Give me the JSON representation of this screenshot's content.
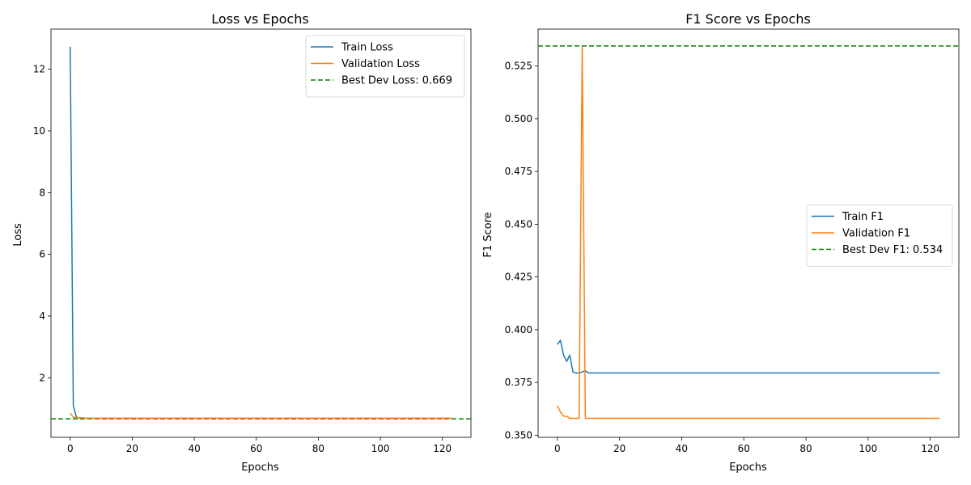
{
  "chart_data": [
    {
      "type": "line",
      "title": "Loss vs Epochs",
      "xlabel": "Epochs",
      "ylabel": "Loss",
      "xlim": [
        -6.2,
        129.2
      ],
      "ylim": [
        0.07,
        13.3
      ],
      "xticks": [
        0,
        20,
        40,
        60,
        80,
        100,
        120
      ],
      "yticks": [
        2,
        4,
        6,
        8,
        10,
        12
      ],
      "grid": false,
      "legend_position": "top-right",
      "series": [
        {
          "name": "Train Loss",
          "color": "#1f77b4",
          "style": "solid",
          "x": [
            0,
            1,
            2,
            3,
            4,
            5,
            6,
            8,
            10,
            20,
            40,
            60,
            80,
            100,
            123
          ],
          "y": [
            12.73,
            1.1,
            0.72,
            0.7,
            0.7,
            0.69,
            0.69,
            0.69,
            0.69,
            0.69,
            0.69,
            0.69,
            0.69,
            0.69,
            0.69
          ]
        },
        {
          "name": "Validation Loss",
          "color": "#ff7f0e",
          "style": "solid",
          "x": [
            0,
            1,
            2,
            3,
            4,
            5,
            6,
            8,
            10,
            20,
            40,
            60,
            80,
            100,
            123
          ],
          "y": [
            0.85,
            0.72,
            0.71,
            0.7,
            0.7,
            0.69,
            0.69,
            0.69,
            0.69,
            0.69,
            0.69,
            0.69,
            0.69,
            0.69,
            0.69
          ]
        }
      ],
      "reference_lines": [
        {
          "name": "Best Dev Loss: 0.669",
          "y": 0.669,
          "color": "#008000",
          "style": "dashed"
        }
      ]
    },
    {
      "type": "line",
      "title": "F1 Score vs Epochs",
      "xlabel": "Epochs",
      "ylabel": "F1 Score",
      "xlim": [
        -6.2,
        129.2
      ],
      "ylim": [
        0.349,
        0.5425
      ],
      "xticks": [
        0,
        20,
        40,
        60,
        80,
        100,
        120
      ],
      "yticks": [
        0.35,
        0.375,
        0.4,
        0.425,
        0.45,
        0.475,
        0.5,
        0.525
      ],
      "ytick_labels": [
        "0.350",
        "0.375",
        "0.400",
        "0.425",
        "0.450",
        "0.475",
        "0.500",
        "0.525"
      ],
      "grid": false,
      "legend_position": "center-right",
      "series": [
        {
          "name": "Train F1",
          "color": "#1f77b4",
          "style": "solid",
          "x": [
            0,
            1,
            2,
            3,
            4,
            5,
            6,
            7,
            8,
            9,
            10,
            11,
            20,
            40,
            60,
            80,
            100,
            123
          ],
          "y": [
            0.393,
            0.395,
            0.388,
            0.385,
            0.388,
            0.38,
            0.3795,
            0.3795,
            0.38,
            0.3805,
            0.3795,
            0.3795,
            0.3795,
            0.3795,
            0.3795,
            0.3795,
            0.3795,
            0.3795
          ]
        },
        {
          "name": "Validation F1",
          "color": "#ff7f0e",
          "style": "solid",
          "x": [
            0,
            1,
            2,
            3,
            4,
            5,
            6,
            7,
            8,
            9,
            10,
            20,
            40,
            60,
            80,
            100,
            123
          ],
          "y": [
            0.364,
            0.361,
            0.359,
            0.359,
            0.358,
            0.358,
            0.358,
            0.358,
            0.534,
            0.358,
            0.358,
            0.358,
            0.358,
            0.358,
            0.358,
            0.358,
            0.358
          ]
        }
      ],
      "reference_lines": [
        {
          "name": "Best Dev F1: 0.534",
          "y": 0.5345,
          "color": "#008000",
          "style": "dashed"
        }
      ]
    }
  ]
}
